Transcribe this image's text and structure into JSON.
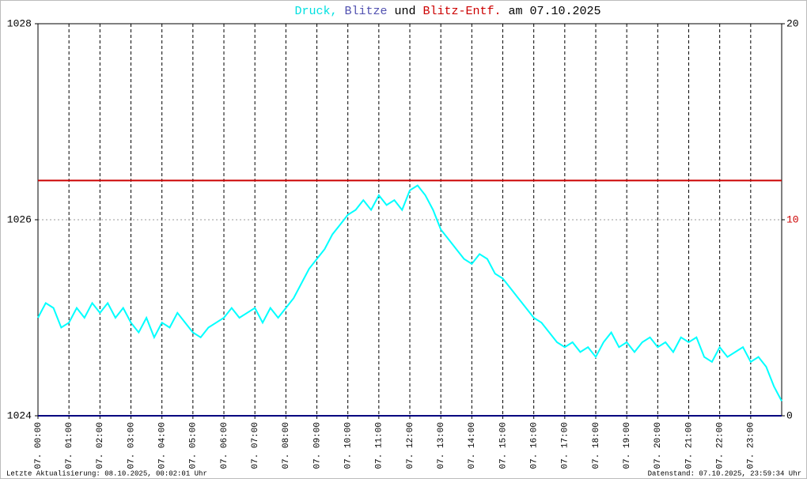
{
  "chart_data": {
    "type": "line",
    "title_parts": [
      {
        "text": "Druck,",
        "color": "#00e0e0"
      },
      {
        "text": "Blitze",
        "color": "#5050b0"
      },
      {
        "text": "und",
        "color": "#000000"
      },
      {
        "text": "Blitz-Entf.",
        "color": "#cc0000"
      },
      {
        "text": "am 07.10.2025",
        "color": "#000000"
      }
    ],
    "x": [
      0,
      0.25,
      0.5,
      0.75,
      1,
      1.25,
      1.5,
      1.75,
      2,
      2.25,
      2.5,
      2.75,
      3,
      3.25,
      3.5,
      3.75,
      4,
      4.25,
      4.5,
      4.75,
      5,
      5.25,
      5.5,
      5.75,
      6,
      6.25,
      6.5,
      6.75,
      7,
      7.25,
      7.5,
      7.75,
      8,
      8.25,
      8.5,
      8.75,
      9,
      9.25,
      9.5,
      9.75,
      10,
      10.25,
      10.5,
      10.75,
      11,
      11.25,
      11.5,
      11.75,
      12,
      12.25,
      12.5,
      12.75,
      13,
      13.25,
      13.5,
      13.75,
      14,
      14.25,
      14.5,
      14.75,
      15,
      15.25,
      15.5,
      15.75,
      16,
      16.25,
      16.5,
      16.75,
      17,
      17.25,
      17.5,
      17.75,
      18,
      18.25,
      18.5,
      18.75,
      19,
      19.25,
      19.5,
      19.75,
      20,
      20.25,
      20.5,
      20.75,
      21,
      21.25,
      21.5,
      21.75,
      22,
      22.25,
      22.5,
      22.75,
      23,
      23.25,
      23.5,
      23.75,
      24
    ],
    "series": [
      {
        "color": "#00ffff",
        "axis": "y",
        "values": [
          1025.0,
          1025.15,
          1025.1,
          1024.9,
          1024.95,
          1025.1,
          1025.0,
          1025.15,
          1025.05,
          1025.15,
          1025.0,
          1025.1,
          1024.95,
          1024.85,
          1025.0,
          1024.8,
          1024.95,
          1024.9,
          1025.05,
          1024.95,
          1024.85,
          1024.8,
          1024.9,
          1024.95,
          1025.0,
          1025.1,
          1025.0,
          1025.05,
          1025.1,
          1024.95,
          1025.1,
          1025.0,
          1025.1,
          1025.2,
          1025.35,
          1025.5,
          1025.6,
          1025.7,
          1025.85,
          1025.95,
          1026.05,
          1026.1,
          1026.2,
          1026.1,
          1026.25,
          1026.15,
          1026.2,
          1026.1,
          1026.3,
          1026.35,
          1026.25,
          1026.1,
          1025.9,
          1025.8,
          1025.7,
          1025.6,
          1025.55,
          1025.65,
          1025.6,
          1025.45,
          1025.4,
          1025.3,
          1025.2,
          1025.1,
          1025.0,
          1024.95,
          1024.85,
          1024.75,
          1024.7,
          1024.75,
          1024.65,
          1024.7,
          1024.6,
          1024.75,
          1024.85,
          1024.7,
          1024.75,
          1024.65,
          1024.75,
          1024.8,
          1024.7,
          1024.75,
          1024.65,
          1024.8,
          1024.75,
          1024.8,
          1024.6,
          1024.55,
          1024.7,
          1024.6,
          1024.65,
          1024.7,
          1024.55,
          1024.6,
          1024.5,
          1024.3,
          1024.15
        ]
      },
      {
        "color": "#000080",
        "axis": "y2",
        "x": [
          0,
          24
        ],
        "values": [
          0,
          0
        ]
      },
      {
        "color": "#cc0000",
        "axis": "y2",
        "x": [
          0,
          24
        ],
        "values": [
          12,
          12
        ]
      }
    ],
    "xlim": [
      0,
      24
    ],
    "xticks": [
      {
        "value": 0,
        "label": "07. 00:00"
      },
      {
        "value": 1,
        "label": "07. 01:00"
      },
      {
        "value": 2,
        "label": "07. 02:00"
      },
      {
        "value": 3,
        "label": "07. 03:00"
      },
      {
        "value": 4,
        "label": "07. 04:00"
      },
      {
        "value": 5,
        "label": "07. 05:00"
      },
      {
        "value": 6,
        "label": "07. 06:00"
      },
      {
        "value": 7,
        "label": "07. 07:00"
      },
      {
        "value": 8,
        "label": "07. 08:00"
      },
      {
        "value": 9,
        "label": "07. 09:00"
      },
      {
        "value": 10,
        "label": "07. 10:00"
      },
      {
        "value": 11,
        "label": "07. 11:00"
      },
      {
        "value": 12,
        "label": "07. 12:00"
      },
      {
        "value": 13,
        "label": "07. 13:00"
      },
      {
        "value": 14,
        "label": "07. 14:00"
      },
      {
        "value": 15,
        "label": "07. 15:00"
      },
      {
        "value": 16,
        "label": "07. 16:00"
      },
      {
        "value": 17,
        "label": "07. 17:00"
      },
      {
        "value": 18,
        "label": "07. 18:00"
      },
      {
        "value": 19,
        "label": "07. 19:00"
      },
      {
        "value": 20,
        "label": "07. 20:00"
      },
      {
        "value": 21,
        "label": "07. 21:00"
      },
      {
        "value": 22,
        "label": "07. 22:00"
      },
      {
        "value": 23,
        "label": "07. 23:00"
      }
    ],
    "ylim": [
      1024,
      1028
    ],
    "yticks": [
      1024,
      1026,
      1028
    ],
    "y2lim": [
      0,
      20
    ],
    "y2ticks": [
      0,
      10,
      20
    ],
    "y2tick_colors": [
      "#000000",
      "#cc0000",
      "#000000"
    ],
    "grid": true,
    "footer_left": "Letzte Aktualisierung: 08.10.2025, 00:02:01 Uhr",
    "footer_right": "Datenstand: 07.10.2025, 23:59:34 Uhr"
  }
}
